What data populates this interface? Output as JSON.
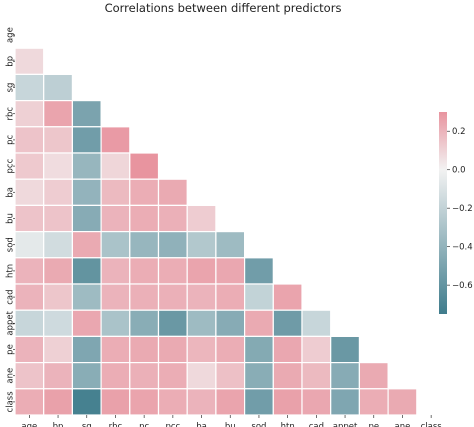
{
  "chart_data": {
    "type": "heatmap",
    "title": "Correlations between different predictors",
    "xlabel": "",
    "ylabel": "",
    "labels": [
      "age",
      "bp",
      "sg",
      "rbc",
      "pc",
      "pcc",
      "ba",
      "bu",
      "sod",
      "htn",
      "cad",
      "appet",
      "pe",
      "ane",
      "class"
    ],
    "mask": "upper-triangle",
    "values": [
      [],
      [
        0.08
      ],
      [
        -0.18,
        -0.22
      ],
      [
        0.11,
        0.25,
        -0.5
      ],
      [
        0.15,
        0.14,
        -0.54,
        0.28
      ],
      [
        0.13,
        0.07,
        -0.38,
        0.09,
        0.3
      ],
      [
        0.08,
        0.12,
        -0.4,
        0.18,
        0.22,
        0.23
      ],
      [
        0.15,
        0.15,
        -0.45,
        0.2,
        0.22,
        0.21,
        0.12
      ],
      [
        -0.06,
        -0.14,
        0.23,
        -0.3,
        -0.38,
        -0.41,
        -0.27,
        -0.35
      ],
      [
        0.2,
        0.23,
        -0.6,
        0.2,
        0.22,
        0.22,
        0.25,
        0.24,
        -0.54
      ],
      [
        0.2,
        0.14,
        -0.35,
        0.2,
        0.21,
        0.21,
        0.2,
        0.22,
        -0.2,
        0.25
      ],
      [
        -0.18,
        -0.15,
        0.24,
        -0.3,
        -0.44,
        -0.57,
        -0.35,
        -0.45,
        0.23,
        -0.55,
        -0.18
      ],
      [
        0.2,
        0.11,
        -0.48,
        0.22,
        0.23,
        0.23,
        0.19,
        0.22,
        -0.46,
        0.24,
        0.12,
        -0.57
      ],
      [
        0.15,
        0.2,
        -0.44,
        0.22,
        0.21,
        0.22,
        0.08,
        0.16,
        -0.44,
        0.23,
        0.18,
        -0.45,
        0.23
      ],
      [
        0.22,
        0.26,
        -0.72,
        0.26,
        0.25,
        0.22,
        0.2,
        0.25,
        -0.54,
        0.26,
        0.24,
        -0.48,
        0.22,
        0.23
      ]
    ],
    "colorbar": {
      "range": [
        -0.75,
        0.3
      ],
      "ticks": [
        0.2,
        0.0,
        -0.2,
        -0.4,
        -0.6
      ],
      "tick_labels": [
        "0.2",
        "0.0",
        "−0.2",
        "−0.4",
        "−0.6"
      ],
      "colors": {
        "low": "#3f7c8c",
        "mid": "#f2f2f2",
        "high": "#e8949f"
      }
    },
    "cell_border": "#ffffff"
  }
}
